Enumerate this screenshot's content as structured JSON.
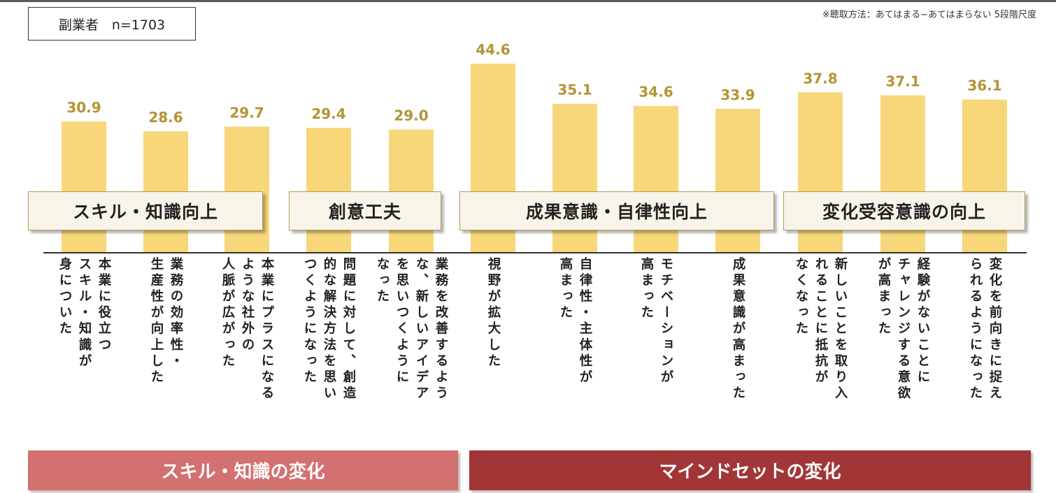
{
  "sample_label": "副業者　n=1703",
  "method_note": "※聴取方法：あてはまる−あてはまらない 5段階尺度",
  "colors": {
    "bar": "#f7d77a",
    "value_text": "#b39434",
    "band_skill": "#d37070",
    "band_mind": "#a23636",
    "group_box_bg": "#f8f4ea",
    "group_box_border": "#b39a55"
  },
  "chart_data": {
    "type": "bar",
    "categories": [
      "本業に役立つスキル・知識が身についた",
      "業務の効率性・生産性が向上した",
      "本業にプラスになるような社外の人脈が広がった",
      "問題に対して、創造的な解決方法を思いつくようになった",
      "業務を改善するような、新しいアイデアを思いつくようになった",
      "視野が拡大した",
      "自律性・主体性が高まった",
      "モチベーションが高まった",
      "成果意識が高まった",
      "新しいことを取り入れることに抵抗がなくなった",
      "経験がないことにチャレンジする意欲が高まった",
      "変化を前向きに捉えられるようになった"
    ],
    "values": [
      30.9,
      28.6,
      29.7,
      29.4,
      29.0,
      44.6,
      35.1,
      34.6,
      33.9,
      37.8,
      37.1,
      36.1
    ],
    "value_labels": [
      "30.9",
      "28.6",
      "29.7",
      "29.4",
      "29.0",
      "44.6",
      "35.1",
      "34.6",
      "33.9",
      "37.8",
      "37.1",
      "36.1"
    ],
    "category_label_lines": [
      [
        "本業に役立つ",
        "スキル・知識が",
        "身についた"
      ],
      [
        "業務の効率性・",
        "生産性が向上した"
      ],
      [
        "本業にプラスになる",
        "ような社外の",
        "人脈が広がった"
      ],
      [
        "問題に対して、創造",
        "的な解決方法を思い",
        "つくようになった"
      ],
      [
        "業務を改善するよう",
        "な、新しいアイデア",
        "を思いつくように",
        "なった"
      ],
      [
        "視野が拡大した"
      ],
      [
        "自律性・主体性が",
        "高まった"
      ],
      [
        "モチベーションが",
        "高まった"
      ],
      [
        "成果意識が高まった"
      ],
      [
        "新しいことを取り入",
        "れることに抵抗が",
        "なくなった"
      ],
      [
        "経験がないことに",
        "チャレンジする意欲",
        "が高まった"
      ],
      [
        "変化を前向きに捉え",
        "られるようになった"
      ]
    ],
    "groups": [
      {
        "label": "スキル・知識向上"
      },
      {
        "label": "創意工夫"
      },
      {
        "label": "成果意識・自律性向上"
      },
      {
        "label": "変化受容意識の向上"
      }
    ],
    "bands": [
      {
        "label": "スキル・知識の変化"
      },
      {
        "label": "マインドセットの変化"
      }
    ],
    "ylim": [
      0,
      50
    ],
    "grid": false,
    "legend": "none"
  }
}
